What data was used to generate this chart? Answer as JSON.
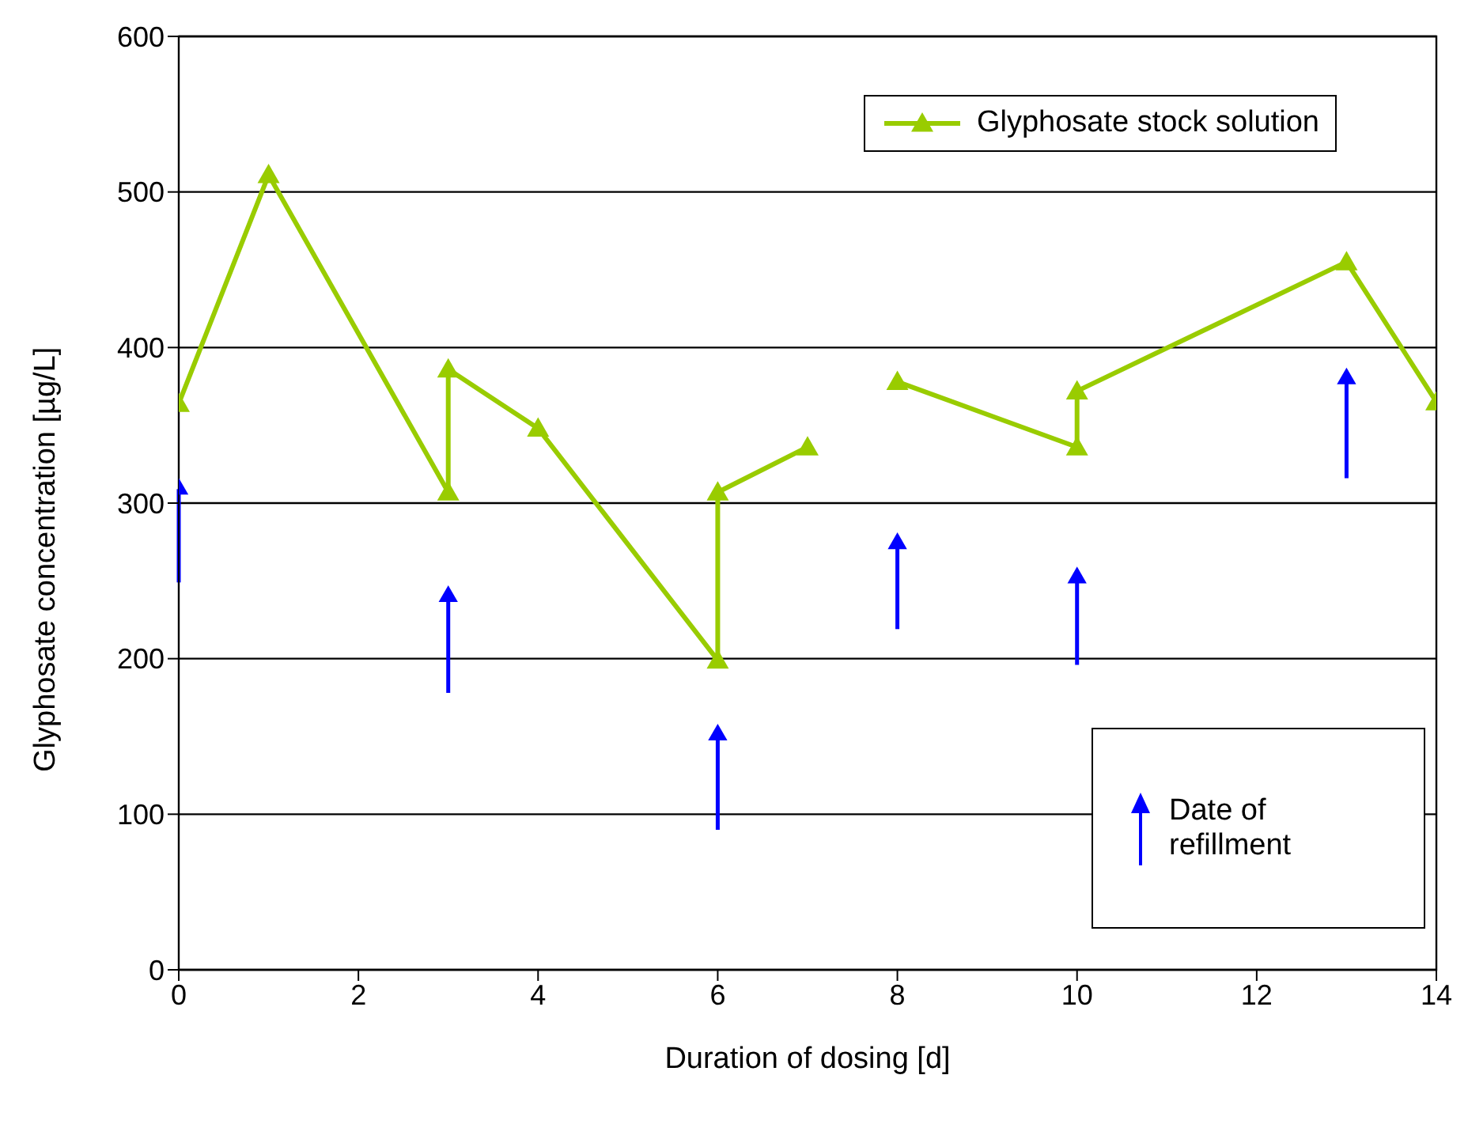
{
  "chart_data": {
    "type": "line",
    "xlabel": "Duration of dosing [d]",
    "ylabel": "Glyphosate concentration [µg/L]",
    "xlim": [
      0,
      14
    ],
    "xticks": [
      0,
      2,
      4,
      6,
      8,
      10,
      12,
      14
    ],
    "ylim": [
      0,
      600
    ],
    "yticks": [
      0,
      100,
      200,
      300,
      400,
      500,
      600
    ],
    "grid": "y",
    "legend": "top right",
    "marker": "triangle",
    "line_style": "solid",
    "series": [
      {
        "name": "Glyphosate stock solution",
        "color": "#99cc00",
        "x": [
          0,
          1,
          3,
          3,
          4,
          6,
          6,
          7
        ],
        "values": [
          364,
          511,
          307,
          386,
          348,
          199,
          307,
          336
        ]
      },
      {
        "color": "#99cc00",
        "x": [
          8,
          10,
          10,
          13,
          14
        ],
        "values": [
          378,
          336,
          372,
          455,
          365
        ]
      },
      {
        "name": "Date of refillment",
        "type": "scatter",
        "marker": "triangle",
        "color": "#0000ff",
        "x": [
          0,
          3,
          6,
          8,
          10,
          13
        ],
        "values": [
          309,
          240,
          151,
          274,
          252,
          380
        ],
        "errors": [
          [
            249,
            309
          ],
          [
            178,
            240
          ],
          [
            90,
            151
          ],
          [
            219,
            274
          ],
          [
            196,
            252
          ],
          [
            316,
            380
          ]
        ]
      }
    ]
  }
}
